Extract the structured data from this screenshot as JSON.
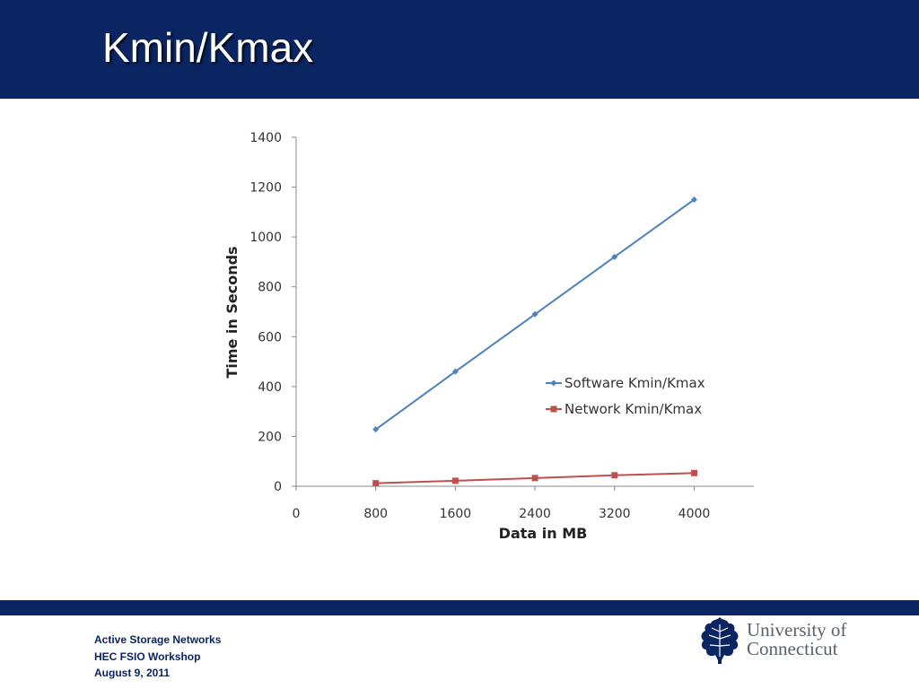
{
  "slide": {
    "title": "Kmin/Kmax"
  },
  "chart_data": {
    "type": "line",
    "xlabel": "Data in MB",
    "ylabel": "Time in Seconds",
    "x": [
      800,
      1600,
      2400,
      3200,
      4000
    ],
    "x_ticks": [
      "0",
      "800",
      "1600",
      "2400",
      "3200",
      "4000"
    ],
    "y_ticks": [
      "0",
      "200",
      "400",
      "600",
      "800",
      "1000",
      "1200",
      "1400"
    ],
    "xlim": [
      0,
      4600
    ],
    "ylim": [
      0,
      1400
    ],
    "grid": false,
    "legend_position": "right-middle",
    "series": [
      {
        "name": "Software Kmin/Kmax",
        "values": [
          228,
          460,
          690,
          920,
          1150
        ],
        "color": "#4f81bd",
        "marker": "diamond"
      },
      {
        "name": "Network Kmin/Kmax",
        "values": [
          12,
          22,
          33,
          44,
          53
        ],
        "color": "#c0504d",
        "marker": "square"
      }
    ]
  },
  "footer": {
    "line1": "Active Storage Networks",
    "line2": "HEC FSIO Workshop",
    "line3": "August 9, 2011",
    "color": "#0b2462"
  },
  "logo": {
    "line1": "University of",
    "line2": "Connecticut",
    "icon": "oak-leaf-icon"
  },
  "colors": {
    "header": "#0b2462",
    "title": "#ffffff"
  }
}
